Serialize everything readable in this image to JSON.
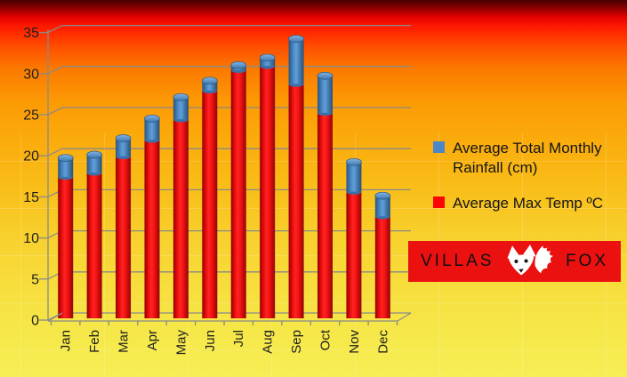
{
  "chart_data": {
    "type": "bar",
    "stacked": true,
    "categories": [
      "Jan",
      "Feb",
      "Mar",
      "Apr",
      "May",
      "Jun",
      "Jul",
      "Aug",
      "Sep",
      "Oct",
      "Nov",
      "Dec"
    ],
    "series": [
      {
        "name": "Average Max Temp ºC",
        "color": "#fd0404",
        "values": [
          17,
          17.5,
          19.5,
          21.5,
          24,
          27.5,
          30,
          30.5,
          28.3,
          24.8,
          15.2,
          12.2
        ]
      },
      {
        "name": "Average Total Monthly Rainfall (cm)",
        "color": "#4a86c8",
        "values": [
          2.3,
          2.2,
          2.2,
          2.6,
          2.7,
          1.2,
          0.6,
          1,
          5.5,
          4.5,
          3.6,
          2.5
        ]
      }
    ],
    "title": "",
    "xlabel": "",
    "ylabel": "",
    "ylim": [
      0,
      35
    ],
    "ytick_step": 5,
    "yticks": [
      0,
      5,
      10,
      15,
      20,
      25,
      30,
      35
    ],
    "grid": true,
    "legend_position": "right",
    "axis_color": "#8a8a8a",
    "tick_label_color": "#1f1f1f"
  },
  "legend": {
    "items": [
      {
        "label": "Average Total Monthly Rainfall (cm)",
        "color": "#4a86c8"
      },
      {
        "label": "Average Max Temp ºC",
        "color": "#fd0404"
      }
    ]
  },
  "logo": {
    "left_text": "VILLAS",
    "right_text": "FOX",
    "icon": "fox-icon",
    "background": "#ec1111",
    "text_color": "#101010"
  },
  "background": {
    "top": "#460000",
    "middle": "#fc9a04",
    "bottom": "#f6ee55"
  }
}
